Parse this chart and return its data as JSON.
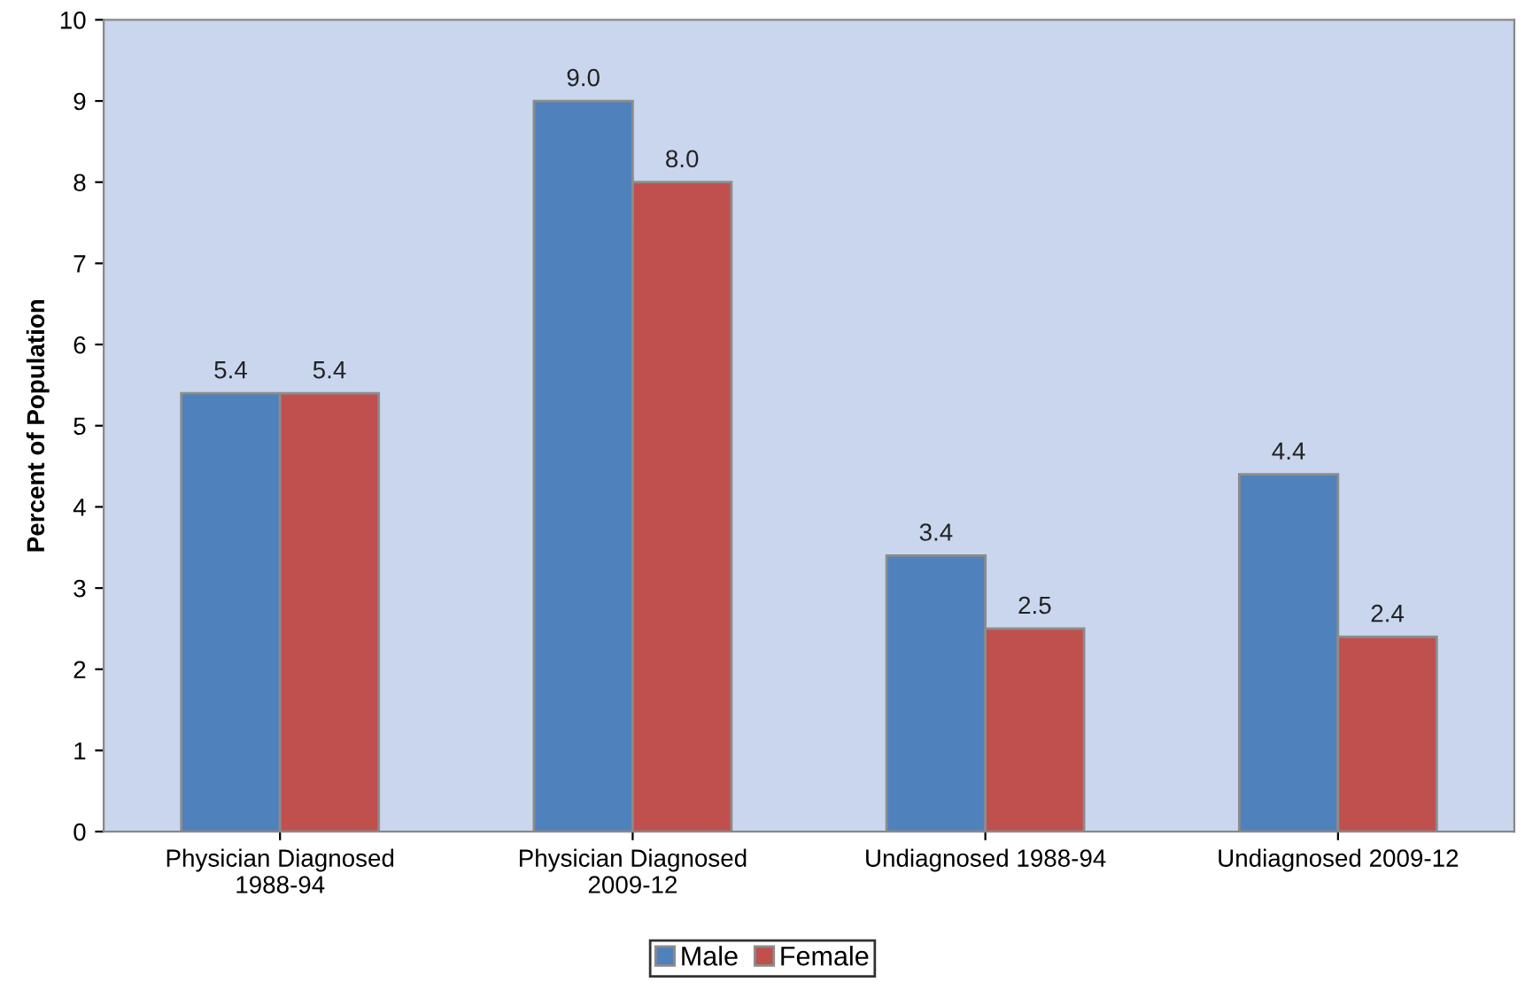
{
  "chart_data": {
    "type": "bar",
    "ylabel": "Percent of Population",
    "categories": [
      "Physician Diagnosed\n1988-94",
      "Physician Diagnosed\n2009-12",
      "Undiagnosed 1988-94",
      "Undiagnosed 2009-12"
    ],
    "series": [
      {
        "name": "Male",
        "color": "#4f81bd",
        "values": [
          5.4,
          9.0,
          3.4,
          4.4
        ],
        "value_labels": [
          "5.4",
          "9.0",
          "3.4",
          "4.4"
        ]
      },
      {
        "name": "Female",
        "color": "#c0504d",
        "values": [
          5.4,
          8.0,
          2.5,
          2.4
        ],
        "value_labels": [
          "5.4",
          "8.0",
          "2.5",
          "2.4"
        ]
      }
    ],
    "ylim": [
      0,
      10
    ],
    "yticks": [
      0,
      1,
      2,
      3,
      4,
      5,
      6,
      7,
      8,
      9,
      10
    ],
    "grid": false,
    "legend": "bottom"
  }
}
